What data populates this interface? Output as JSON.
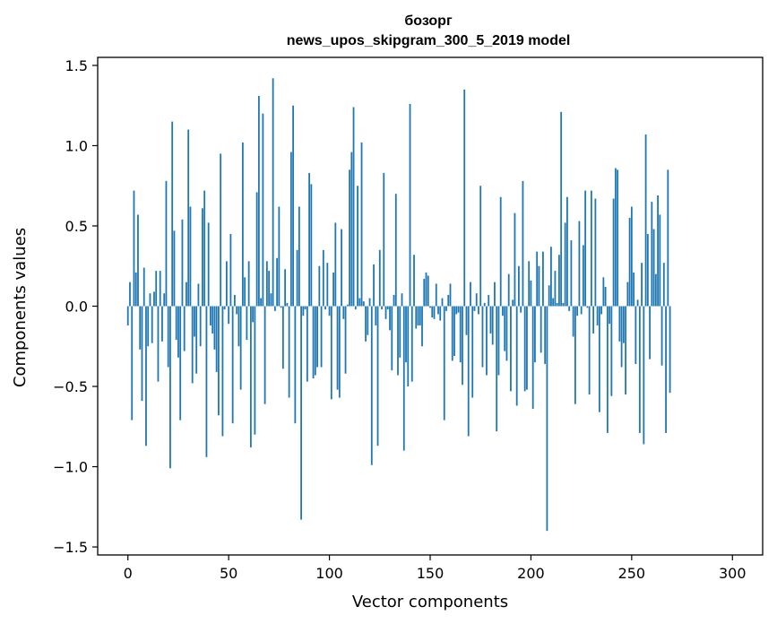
{
  "chart_data": {
    "type": "bar",
    "title": "бозорг",
    "subtitle": "news_upos_skipgram_300_5_2019 model",
    "xlabel": "Vector components",
    "ylabel": "Components values",
    "xlim": [
      -15,
      315
    ],
    "ylim": [
      -1.55,
      1.55
    ],
    "xticks": [
      0,
      50,
      100,
      150,
      200,
      250,
      300
    ],
    "yticks": [
      -1.5,
      -1.0,
      -0.5,
      0.0,
      0.5,
      1.0,
      1.5
    ],
    "ytick_labels": [
      "−1.5",
      "−1.0",
      "−0.5",
      "0.0",
      "0.5",
      "1.0",
      "1.5"
    ],
    "bar_color": "#1f77b4",
    "grid": false,
    "values": [
      -0.12,
      0.15,
      -0.71,
      0.72,
      0.21,
      0.57,
      -0.27,
      -0.59,
      0.24,
      -0.87,
      -0.25,
      0.08,
      -0.23,
      0.09,
      0.22,
      -0.47,
      0.22,
      -0.22,
      0.08,
      0.78,
      -0.38,
      -1.01,
      1.15,
      0.47,
      -0.21,
      -0.32,
      -0.71,
      0.54,
      -0.28,
      0.15,
      1.1,
      0.62,
      -0.48,
      -0.19,
      -0.42,
      0.14,
      -0.25,
      0.61,
      0.72,
      -0.94,
      0.52,
      -0.12,
      -0.17,
      -0.27,
      -0.41,
      -0.68,
      0.95,
      -0.81,
      -0.02,
      0.28,
      -0.11,
      0.45,
      -0.73,
      0.07,
      -0.05,
      -0.25,
      -0.52,
      1.02,
      0.18,
      -0.21,
      0.28,
      -0.88,
      -0.1,
      -0.8,
      0.71,
      1.31,
      0.05,
      1.2,
      -0.61,
      0.28,
      0.22,
      0.08,
      1.42,
      -0.03,
      0.3,
      0.62,
      -0.01,
      -0.39,
      0.23,
      0.02,
      -0.57,
      0.96,
      1.25,
      -0.73,
      0.35,
      0.62,
      -1.33,
      -0.06,
      -0.02,
      -0.47,
      0.83,
      0.76,
      -0.45,
      -0.43,
      -0.38,
      0.25,
      -0.38,
      0.35,
      -0.02,
      0.27,
      -0.06,
      -0.58,
      0.21,
      0.52,
      -0.52,
      -0.57,
      0.48,
      -0.08,
      -0.42,
      0.01,
      0.85,
      0.96,
      1.24,
      -0.02,
      0.75,
      0.05,
      1.02,
      0.03,
      -0.22,
      -0.18,
      0.05,
      -0.99,
      0.26,
      -0.12,
      -0.87,
      0.35,
      -0.02,
      0.83,
      -0.08,
      -0.02,
      -0.15,
      -0.4,
      0.07,
      0.7,
      -0.43,
      -0.32,
      0.08,
      -0.9,
      -0.35,
      -0.5,
      1.26,
      -0.47,
      0.32,
      -0.14,
      -0.12,
      -0.12,
      -0.25,
      0.17,
      0.21,
      0.19,
      -0.01,
      -0.07,
      -0.08,
      0.14,
      -0.05,
      -0.09,
      0.05,
      -0.71,
      -0.03,
      0.07,
      0.14,
      -0.34,
      -0.31,
      -0.05,
      -0.04,
      -0.35,
      -0.49,
      1.35,
      -0.18,
      -0.81,
      0.15,
      -0.57,
      -0.03,
      0.08,
      -0.05,
      0.75,
      -0.38,
      0.02,
      -0.43,
      0.07,
      -0.17,
      -0.24,
      0.15,
      -0.78,
      -0.43,
      0.68,
      -0.06,
      -0.28,
      -0.34,
      0.2,
      -0.53,
      0.04,
      0.58,
      -0.62,
      0.25,
      -0.04,
      0.78,
      -0.53,
      -0.52,
      0.28,
      0.16,
      -0.64,
      -0.35,
      0.34,
      0.25,
      -0.29,
      0.34,
      -0.36,
      -1.4,
      0.13,
      0.37,
      0.05,
      0.22,
      0.02,
      0.32,
      1.21,
      0.02,
      0.52,
      0.68,
      -0.03,
      0.41,
      -0.19,
      -0.61,
      -0.06,
      0.53,
      -0.05,
      0.38,
      0.72,
      -0.01,
      -0.55,
      0.72,
      -0.17,
      0.67,
      -0.12,
      -0.66,
      -0.05,
      0.18,
      0.12,
      -0.79,
      -0.11,
      -0.56,
      0.67,
      0.86,
      0.85,
      -0.22,
      -0.38,
      -0.23,
      -0.55,
      0.15,
      0.55,
      0.62,
      0.21,
      -0.36,
      0.04,
      -0.79,
      0.27,
      -0.86,
      1.07,
      0.45,
      -0.33,
      0.65,
      0.48,
      0.2,
      0.69,
      0.57,
      -0.37,
      0.27,
      -0.79,
      0.85,
      -0.54
    ]
  }
}
